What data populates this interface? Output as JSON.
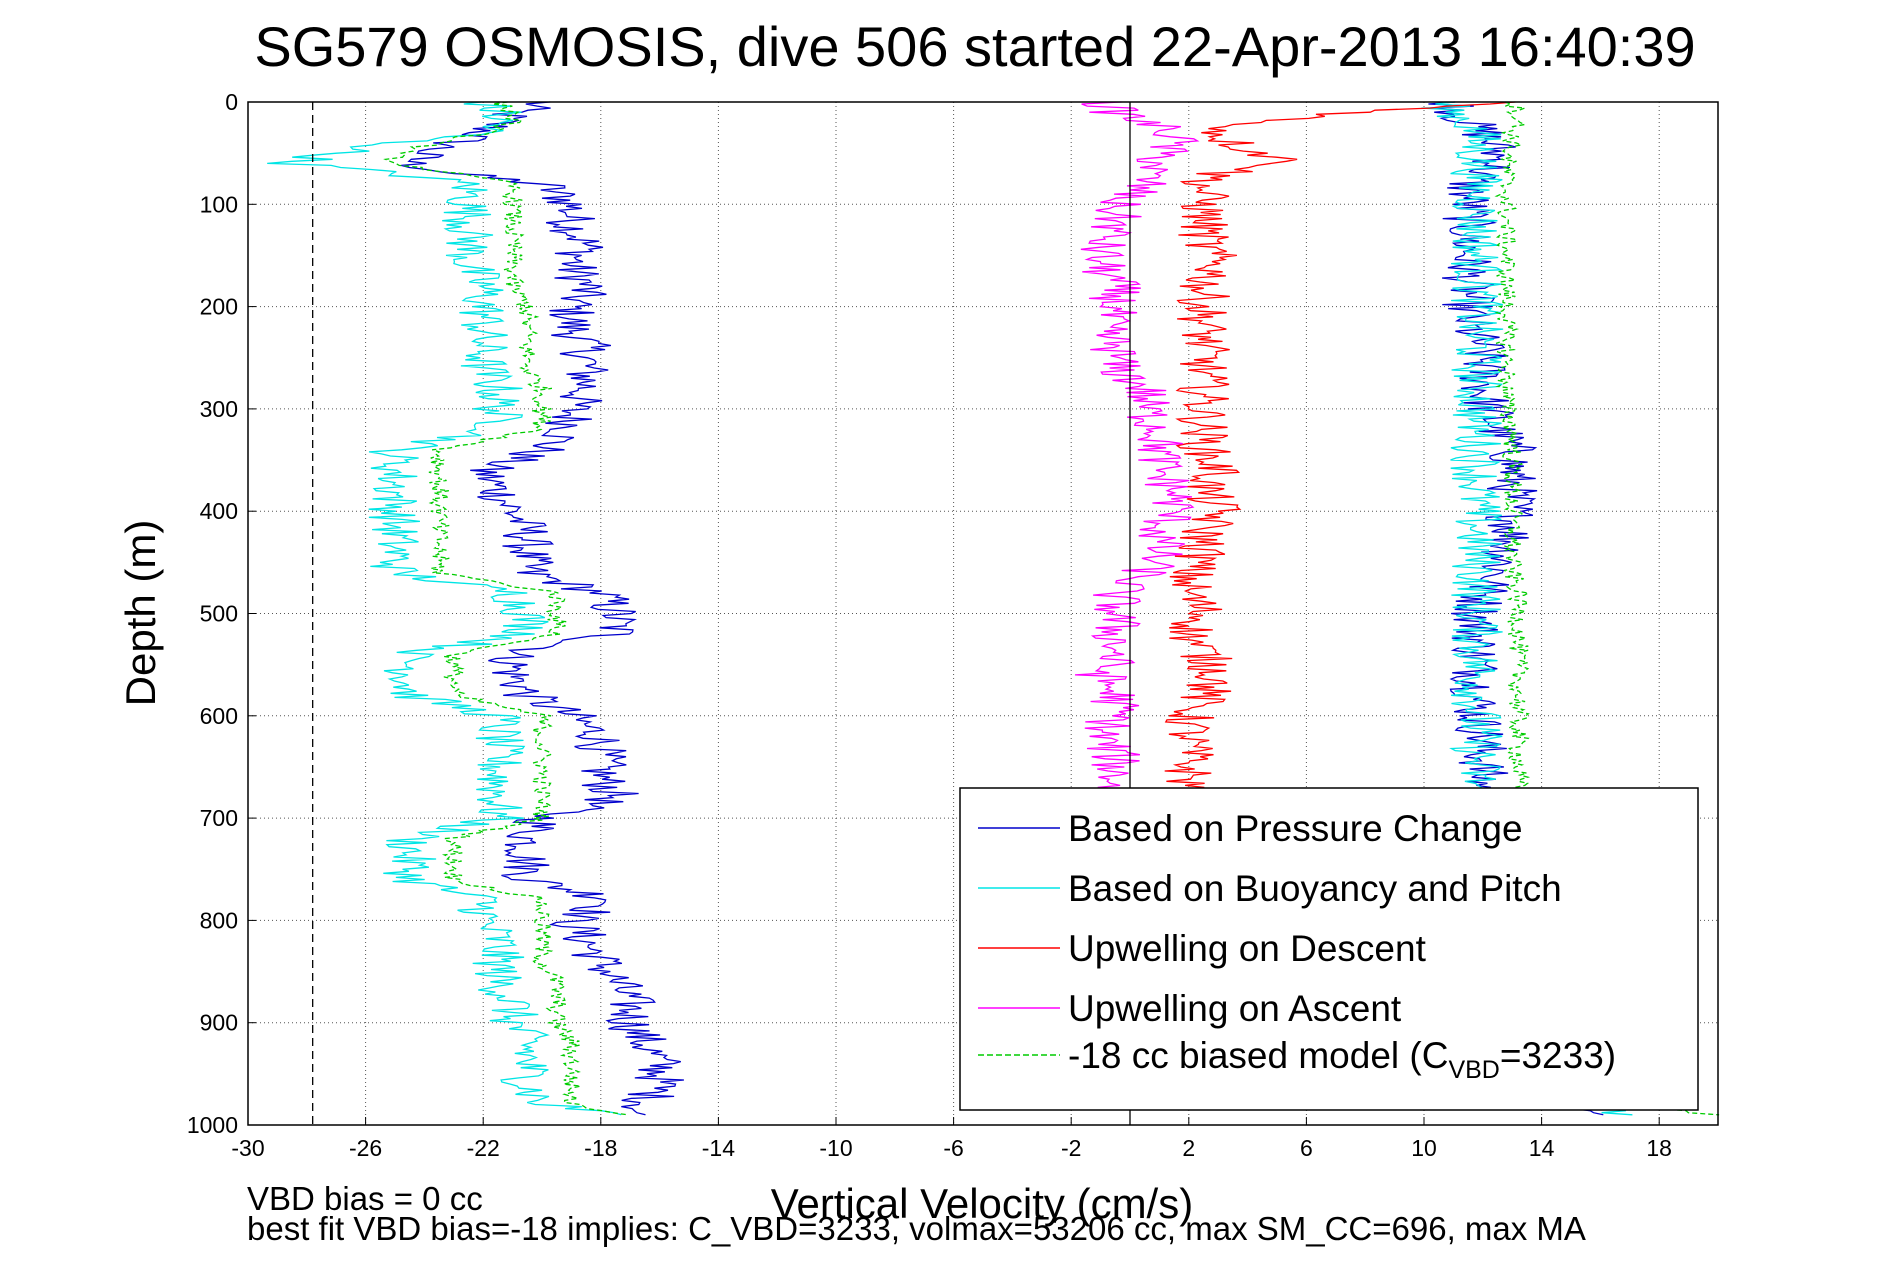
{
  "chart_data": {
    "type": "line",
    "title": "SG579 OSMOSIS, dive 506 started 22-Apr-2013 16:40:39",
    "xlabel": "Vertical Velocity (cm/s)",
    "ylabel": "Depth (m)",
    "xlim": [
      -30,
      20
    ],
    "ylim": [
      0,
      1000
    ],
    "y_reversed": true,
    "grid": true,
    "x_ticks": [
      -30,
      -26,
      -22,
      -18,
      -14,
      -10,
      -6,
      -2,
      2,
      6,
      10,
      14,
      18
    ],
    "y_ticks": [
      0,
      100,
      200,
      300,
      400,
      500,
      600,
      700,
      800,
      900,
      1000
    ],
    "reference_lines": [
      {
        "x": -27.8,
        "style": "dashed",
        "color": "#000000"
      },
      {
        "x": 0,
        "style": "solid",
        "color": "#000000"
      }
    ],
    "legend": {
      "placement": "lower-right",
      "entries": [
        {
          "label": "Based on Pressure Change",
          "color": "#0000cc",
          "style": "solid"
        },
        {
          "label": "Based on Buoyancy and Pitch",
          "color": "#00e5e5",
          "style": "solid"
        },
        {
          "label": "Upwelling on Descent",
          "color": "#ff0000",
          "style": "solid"
        },
        {
          "label": "Upwelling on Ascent",
          "color": "#ff00ff",
          "style": "solid"
        },
        {
          "label_main": "-18 cc biased model (C",
          "label_sub": "VBD",
          "label_end": "=3233)",
          "color": "#00cc00",
          "style": "dashed"
        }
      ]
    },
    "series": [
      {
        "name": "Based on Pressure Change",
        "color": "#0000cc",
        "style": "solid",
        "profiles": [
          {
            "depth": [
              0,
              10,
              20,
              30,
              40,
              50,
              60,
              70,
              80,
              90,
              100,
              120,
              140,
              160,
              180,
              200,
              220,
              240,
              260,
              280,
              300,
              320,
              340,
              360,
              380,
              400,
              420,
              440,
              460,
              480,
              500,
              520,
              540,
              560,
              580,
              600,
              620,
              640,
              660,
              680,
              700,
              720,
              740,
              760,
              780,
              800,
              820,
              840,
              860,
              880,
              900,
              920,
              940,
              960,
              980,
              990
            ],
            "v": [
              -20,
              -21,
              -21.5,
              -22,
              -23,
              -24,
              -24.5,
              -23,
              -20,
              -19.5,
              -19,
              -19,
              -18.5,
              -19,
              -18.5,
              -19,
              -19,
              -18.5,
              -18.5,
              -18.5,
              -19,
              -19,
              -20,
              -22,
              -21.5,
              -21,
              -20.5,
              -20.5,
              -20.5,
              -18,
              -17.5,
              -17.5,
              -21,
              -21,
              -20.5,
              -19,
              -18,
              -18,
              -18,
              -17.5,
              -20,
              -20.5,
              -20.5,
              -20.5,
              -17.5,
              -19,
              -18.5,
              -18,
              -17.5,
              -17,
              -17,
              -16.5,
              -16,
              -16,
              -16.5,
              -17
            ]
          },
          {
            "depth": [
              0,
              10,
              20,
              30,
              40,
              50,
              60,
              80,
              100,
              120,
              140,
              160,
              180,
              200,
              220,
              240,
              260,
              280,
              300,
              320,
              340,
              360,
              380,
              400,
              420,
              440,
              460,
              480,
              500,
              520,
              540,
              560,
              580,
              600,
              620,
              640,
              660,
              680,
              700,
              720,
              740,
              760,
              780,
              800,
              820,
              840,
              860,
              880,
              900,
              920,
              940,
              960,
              980,
              990
            ],
            "v": [
              11,
              11.2,
              11.5,
              12,
              12.3,
              12.5,
              12.5,
              11.5,
              11.5,
              11.5,
              11.5,
              11.5,
              11.5,
              11.5,
              11.5,
              12,
              12,
              12,
              12.2,
              12.5,
              13,
              13,
              13,
              13,
              13,
              12.8,
              12.5,
              12,
              11.8,
              11.8,
              11.8,
              11.8,
              11.8,
              11.8,
              12,
              12,
              12,
              12,
              12,
              12,
              12,
              12,
              12,
              12,
              12,
              12,
              12,
              12,
              12,
              12,
              12.5,
              13,
              14,
              16
            ]
          }
        ]
      },
      {
        "name": "Based on Buoyancy and Pitch",
        "color": "#00e5e5",
        "style": "solid",
        "profiles": [
          {
            "depth": [
              0,
              10,
              20,
              30,
              40,
              50,
              60,
              70,
              80,
              90,
              100,
              120,
              140,
              160,
              180,
              200,
              220,
              240,
              260,
              280,
              300,
              320,
              340,
              360,
              380,
              400,
              420,
              440,
              460,
              480,
              500,
              520,
              540,
              560,
              580,
              600,
              620,
              640,
              660,
              680,
              700,
              720,
              740,
              760,
              780,
              800,
              820,
              840,
              860,
              880,
              900,
              920,
              940,
              960,
              980,
              990
            ],
            "v": [
              -22,
              -21.5,
              -21.5,
              -22,
              -25,
              -27,
              -28.5,
              -25,
              -22.5,
              -22.5,
              -22.5,
              -22.5,
              -22.5,
              -22.5,
              -22,
              -22,
              -22,
              -22,
              -22,
              -21.5,
              -21.5,
              -21.5,
              -25,
              -25,
              -25,
              -25,
              -25,
              -25,
              -25,
              -21,
              -20.5,
              -20.5,
              -24.5,
              -24.5,
              -24.5,
              -21.5,
              -21.5,
              -21.5,
              -21.5,
              -21.5,
              -21.5,
              -24.5,
              -24.5,
              -24.5,
              -22,
              -22,
              -21.5,
              -21.5,
              -21.5,
              -21,
              -21,
              -20.5,
              -20.5,
              -20.5,
              -20,
              -17
            ]
          },
          {
            "depth": [
              0,
              10,
              20,
              30,
              40,
              60,
              80,
              100,
              120,
              140,
              160,
              180,
              200,
              220,
              240,
              260,
              280,
              300,
              320,
              340,
              360,
              380,
              400,
              420,
              440,
              460,
              480,
              500,
              520,
              540,
              560,
              580,
              600,
              620,
              640,
              660,
              680,
              700,
              720,
              740,
              760,
              780,
              800,
              820,
              840,
              860,
              880,
              900,
              920,
              940,
              960,
              980,
              990
            ],
            "v": [
              10.5,
              11,
              11.5,
              11.8,
              11.8,
              11.8,
              11.8,
              11.8,
              11.8,
              11.8,
              11.8,
              11.8,
              11.8,
              11.8,
              11.8,
              11.8,
              11.8,
              11.8,
              11.8,
              11.8,
              11.8,
              11.8,
              11.8,
              11.8,
              11.8,
              11.8,
              11.8,
              11.8,
              11.8,
              11.8,
              11.8,
              11.8,
              11.8,
              11.8,
              11.8,
              11.8,
              11.8,
              11.8,
              11.8,
              11.8,
              11.8,
              11.8,
              11.8,
              11.8,
              11.8,
              11.8,
              11.8,
              11.8,
              11.8,
              12,
              13,
              15,
              17
            ]
          }
        ]
      },
      {
        "name": "Upwelling on Descent",
        "color": "#ff0000",
        "style": "solid",
        "profiles": [
          {
            "depth": [
              0,
              10,
              20,
              30,
              40,
              50,
              60,
              70,
              80,
              100,
              120,
              140,
              160,
              180,
              200,
              220,
              240,
              260,
              280,
              300,
              320,
              340,
              360,
              380,
              400,
              420,
              440,
              460,
              480,
              500,
              520,
              540,
              560,
              580,
              600,
              620,
              640,
              660,
              680,
              700
            ],
            "v": [
              13,
              8,
              4,
              3,
              3.5,
              4.5,
              5.5,
              3,
              2.5,
              2.5,
              2.5,
              2.5,
              3,
              2.5,
              2.5,
              2.5,
              2.5,
              2.5,
              2.5,
              2.5,
              2.5,
              2.5,
              3,
              2.5,
              3,
              2.5,
              2.5,
              2,
              2,
              2.5,
              2,
              2.5,
              3,
              2.5,
              2,
              2,
              2,
              2,
              2,
              2
            ]
          }
        ]
      },
      {
        "name": "Upwelling on Ascent",
        "color": "#ff00ff",
        "style": "solid",
        "profiles": [
          {
            "depth": [
              0,
              10,
              20,
              30,
              40,
              50,
              60,
              70,
              80,
              100,
              120,
              140,
              160,
              180,
              200,
              220,
              240,
              260,
              280,
              300,
              320,
              340,
              360,
              380,
              400,
              420,
              440,
              460,
              480,
              500,
              520,
              540,
              560,
              580,
              600,
              620,
              640,
              660,
              680,
              700
            ],
            "v": [
              -1,
              -0.5,
              0.5,
              1.5,
              1.5,
              1,
              1,
              0.5,
              0.5,
              -0.5,
              -0.5,
              -1,
              -1,
              -0.5,
              -0.5,
              -1,
              -0.5,
              -0.5,
              0.5,
              0.5,
              1,
              1,
              1,
              1.5,
              1.5,
              1,
              1,
              0.5,
              -0.5,
              -0.5,
              -0.5,
              -0.5,
              -1,
              -0.5,
              -0.5,
              -1,
              -0.5,
              -0.5,
              -0.5,
              -0.5
            ]
          }
        ]
      },
      {
        "name": "-18 cc biased model (C_VBD=3233)",
        "color": "#00cc00",
        "style": "dashed",
        "profiles": [
          {
            "depth": [
              0,
              10,
              20,
              30,
              40,
              50,
              60,
              70,
              80,
              90,
              100,
              120,
              140,
              160,
              180,
              200,
              220,
              240,
              260,
              280,
              300,
              320,
              340,
              360,
              380,
              400,
              420,
              440,
              460,
              480,
              500,
              520,
              540,
              560,
              580,
              600,
              620,
              640,
              660,
              680,
              700,
              720,
              740,
              760,
              780,
              800,
              820,
              840,
              860,
              880,
              900,
              920,
              940,
              960,
              980,
              990
            ],
            "v": [
              -21.5,
              -21,
              -21,
              -22,
              -23.5,
              -25,
              -25,
              -23,
              -21,
              -21,
              -21,
              -21,
              -21,
              -21,
              -21,
              -20.5,
              -20.5,
              -20.5,
              -20.5,
              -20,
              -20,
              -20,
              -23.5,
              -23.5,
              -23.5,
              -23.5,
              -23.5,
              -23.5,
              -23.5,
              -19.5,
              -19.5,
              -19.5,
              -23,
              -23,
              -23,
              -20,
              -20,
              -20,
              -20,
              -20,
              -20,
              -23,
              -23,
              -23,
              -20,
              -20,
              -20,
              -20,
              -19.5,
              -19.5,
              -19.5,
              -19,
              -19,
              -19,
              -19,
              -17
            ]
          },
          {
            "depth": [
              0,
              10,
              20,
              30,
              40,
              60,
              80,
              100,
              120,
              140,
              160,
              180,
              200,
              220,
              240,
              260,
              280,
              300,
              320,
              340,
              360,
              380,
              400,
              420,
              440,
              460,
              480,
              500,
              520,
              540,
              560,
              580,
              600,
              620,
              640,
              660,
              680,
              700,
              720,
              740,
              760,
              780,
              800,
              820,
              840,
              860,
              880,
              900,
              920,
              940,
              960,
              980,
              990
            ],
            "v": [
              13,
              13.2,
              13.2,
              13,
              13,
              12.8,
              12.8,
              12.8,
              12.8,
              12.8,
              12.8,
              12.8,
              12.8,
              12.8,
              12.8,
              12.8,
              12.8,
              12.8,
              13,
              13,
              13,
              13,
              13,
              13,
              13,
              13,
              13.2,
              13.2,
              13.2,
              13.2,
              13.2,
              13.2,
              13.2,
              13.2,
              13.2,
              13.2,
              13.2,
              13.2,
              13.2,
              13.2,
              13.2,
              13.2,
              13.2,
              13.2,
              13.2,
              13.2,
              13.2,
              13.2,
              13.2,
              13.5,
              14.5,
              16.5,
              20
            ]
          }
        ]
      }
    ]
  },
  "footer": {
    "line1": "VBD bias = 0 cc",
    "line2": "best fit VBD bias=-18 implies: C_VBD=3233, volmax=53206 cc, max SM_CC=696, max MA"
  }
}
